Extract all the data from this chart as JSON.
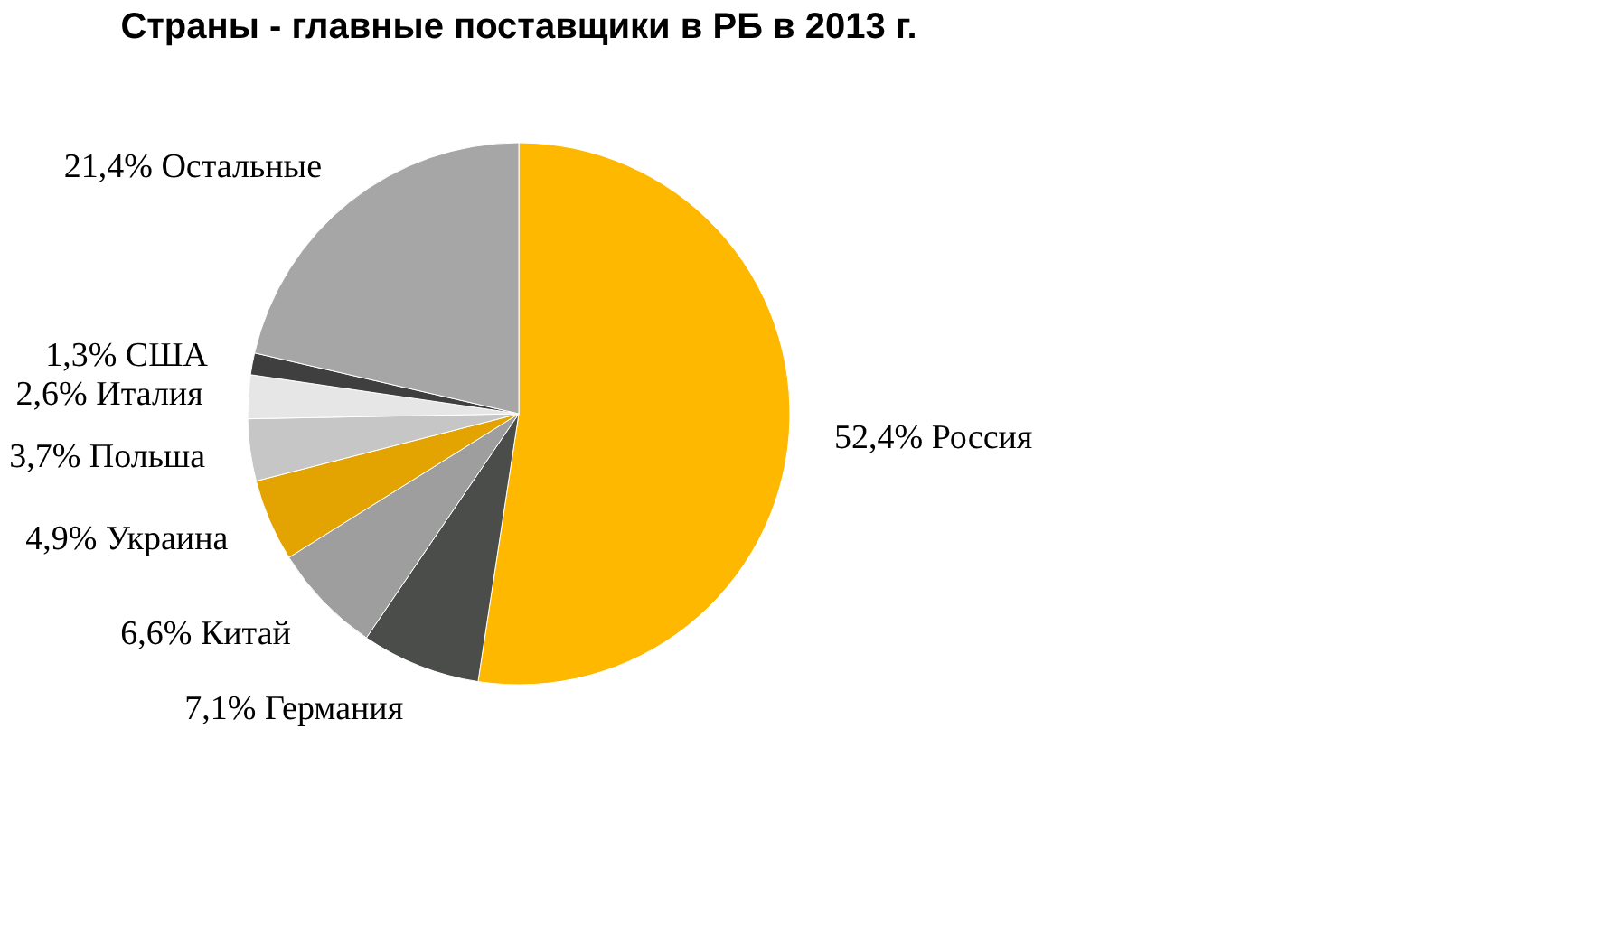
{
  "chart_data": {
    "type": "pie",
    "title": "Страны  - главные поставщики в РБ в 2013 г.",
    "categories": [
      "Россия",
      "Германия",
      "Китай",
      "Украина",
      "Польша",
      "Италия",
      "США",
      "Остальные"
    ],
    "values": [
      52.4,
      7.1,
      6.6,
      4.9,
      3.7,
      2.6,
      1.3,
      21.4
    ],
    "value_labels": [
      "52,4%",
      "7,1%",
      "6,6%",
      "4,9%",
      "3,7%",
      "2,6%",
      "1,3%",
      "21,4%"
    ],
    "colors": [
      "#ffb800",
      "#4b4d4b",
      "#9e9e9e",
      "#e3a300",
      "#c6c6c6",
      "#e6e6e6",
      "#3f3f3f",
      "#a6a6a6"
    ],
    "legend": false
  }
}
